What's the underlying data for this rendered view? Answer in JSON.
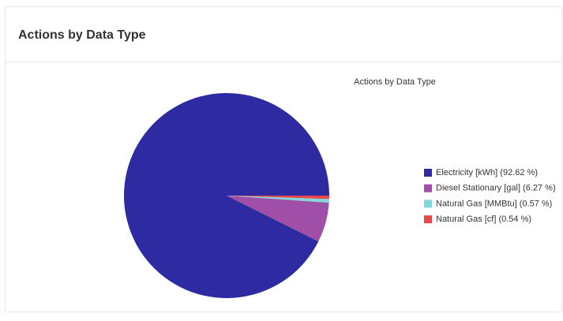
{
  "header": {
    "title": "Actions by Data Type"
  },
  "chart_data": {
    "type": "pie",
    "title": "Actions by Data Type",
    "categories": [
      "Electricity [kWh] (92.62 %)",
      "Diesel Stationary [gal] (6.27 %)",
      "Natural Gas [MMBtu] (0.57 %)",
      "Natural Gas [cf] (0.54 %)"
    ],
    "values": [
      92.62,
      6.27,
      0.57,
      0.54
    ],
    "colors": [
      "#2e2aa1",
      "#9f4fa8",
      "#7fd8dc",
      "#e8474c"
    ],
    "legend": "right"
  }
}
